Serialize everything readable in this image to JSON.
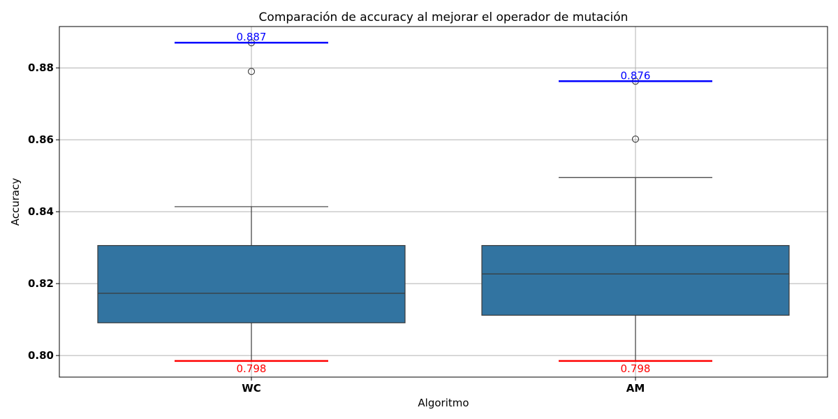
{
  "chart_data": {
    "type": "box",
    "title": "Comparación de accuracy al mejorar el operador de mutación",
    "xlabel": "Algoritmo",
    "ylabel": "Accuracy",
    "ylim": [
      0.794,
      0.8915
    ],
    "yticks": [
      0.8,
      0.82,
      0.84,
      0.86,
      0.88
    ],
    "ytick_labels": [
      "0.80",
      "0.82",
      "0.84",
      "0.86",
      "0.88"
    ],
    "grid": true,
    "box_color": "#3274a1",
    "categories": [
      "WC",
      "AM"
    ],
    "boxes": [
      {
        "category": "WC",
        "whisker_low": 0.7985,
        "q1": 0.8091,
        "median": 0.8173,
        "q3": 0.8306,
        "whisker_high": 0.8414,
        "outliers": [
          0.879,
          0.887
        ]
      },
      {
        "category": "AM",
        "whisker_low": 0.7985,
        "q1": 0.8112,
        "median": 0.8227,
        "q3": 0.8306,
        "whisker_high": 0.8495,
        "outliers": [
          0.8602,
          0.8763
        ]
      }
    ],
    "annotations": [
      {
        "category": "WC",
        "kind": "max",
        "value": 0.887,
        "label": "0.887",
        "color": "#0000ff"
      },
      {
        "category": "WC",
        "kind": "min",
        "value": 0.7985,
        "label": "0.798",
        "color": "#ff0000"
      },
      {
        "category": "AM",
        "kind": "max",
        "value": 0.8763,
        "label": "0.876",
        "color": "#0000ff"
      },
      {
        "category": "AM",
        "kind": "min",
        "value": 0.7985,
        "label": "0.798",
        "color": "#ff0000"
      }
    ]
  }
}
